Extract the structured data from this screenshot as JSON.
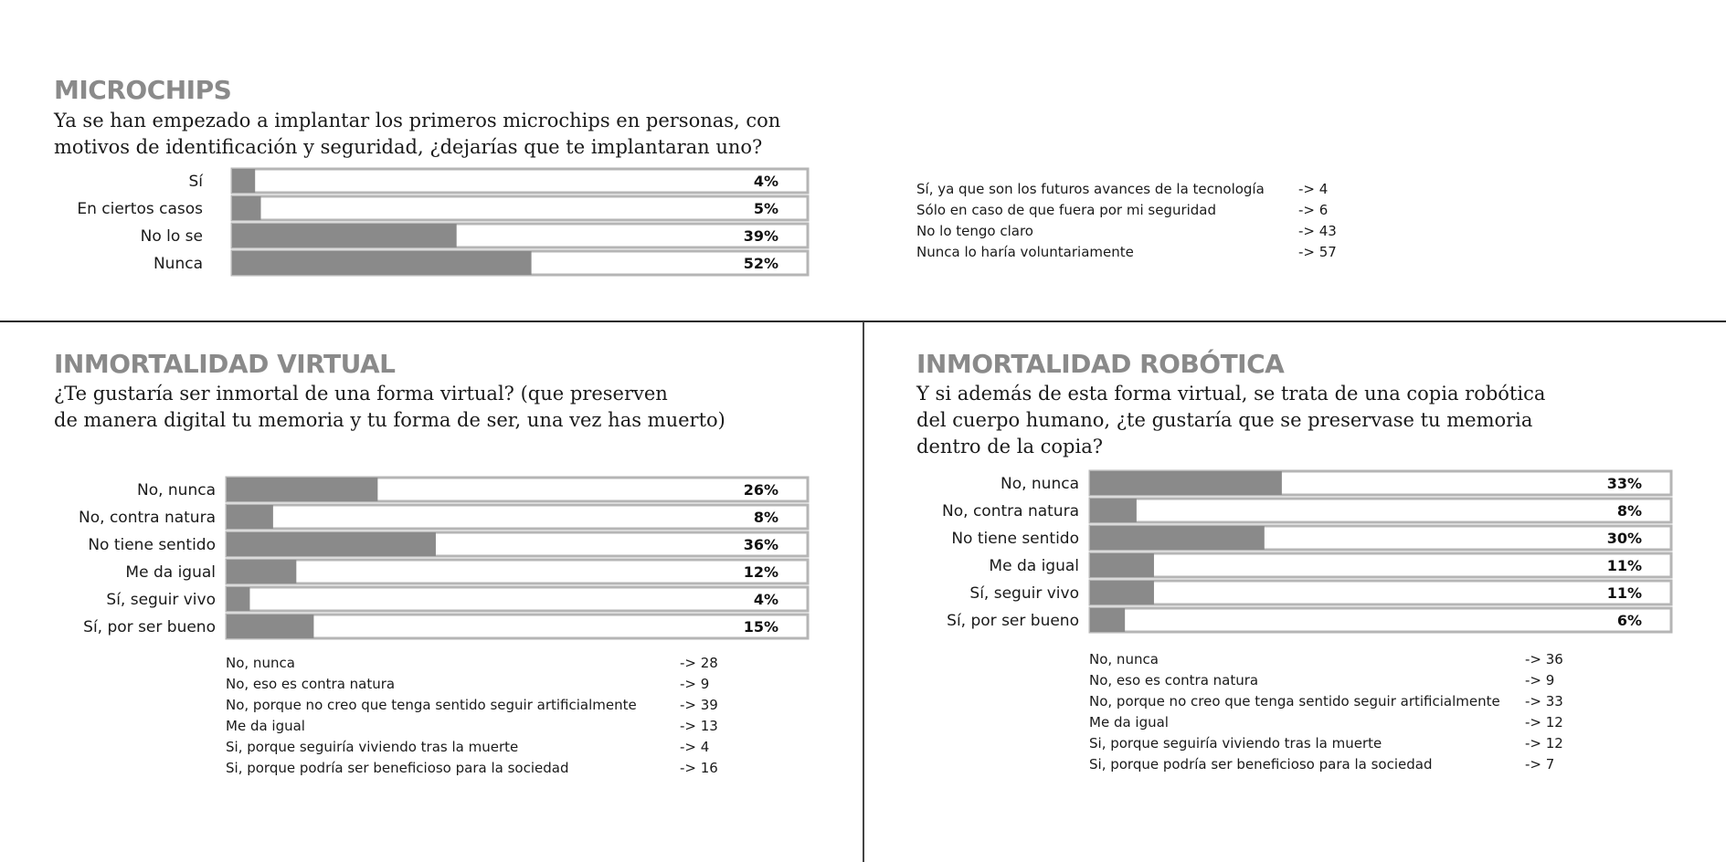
{
  "colors": {
    "bar": "#8a8a8a",
    "track": "#ffffff",
    "border": "#b5b5b5",
    "title": "#8a8a8a"
  },
  "sections": {
    "microchips": {
      "title": "MICROCHIPS",
      "question": "Ya se han empezado a implantar los primeros microchips en personas, con\nmotivos de identificación y seguridad, ¿dejarías que te implantaran uno?",
      "answers": [
        {
          "text": "Sí, ya que son los futuros avances de la tecnología",
          "count": "-> 4"
        },
        {
          "text": "Sólo en caso de que fuera por mi seguridad",
          "count": "-> 6"
        },
        {
          "text": "No lo tengo claro",
          "count": "-> 43"
        },
        {
          "text": "Nunca lo haría voluntariamente",
          "count": "-> 57"
        }
      ]
    },
    "virtual": {
      "title": "INMORTALIDAD VIRTUAL",
      "question": "¿Te gustaría ser inmortal de una forma virtual? (que preserven\nde manera digital tu memoria y tu forma de ser, una vez has muerto)",
      "answers": [
        {
          "text": "No, nunca",
          "count": "-> 28"
        },
        {
          "text": "No, eso es contra natura",
          "count": "-> 9"
        },
        {
          "text": "No, porque no creo que tenga sentido seguir artificialmente",
          "count": "-> 39"
        },
        {
          "text": "Me da igual",
          "count": "-> 13"
        },
        {
          "text": "Si, porque seguiría viviendo tras la muerte",
          "count": "-> 4"
        },
        {
          "text": "Si, porque podría ser beneficioso para la sociedad",
          "count": "-> 16"
        }
      ]
    },
    "robotica": {
      "title": "INMORTALIDAD ROBÓTICA",
      "question": "Y si además de esta forma virtual, se trata de una copia robótica\ndel cuerpo humano, ¿te gustaría que se preservase tu memoria\ndentro de la copia?",
      "answers": [
        {
          "text": "No, nunca",
          "count": "-> 36"
        },
        {
          "text": "No, eso es contra natura",
          "count": "-> 9"
        },
        {
          "text": "No, porque no creo que tenga sentido seguir artificialmente",
          "count": "-> 33"
        },
        {
          "text": "Me da igual",
          "count": "-> 12"
        },
        {
          "text": "Si, porque seguiría viviendo tras la muerte",
          "count": "-> 12"
        },
        {
          "text": "Si, porque podría ser beneficioso para la sociedad",
          "count": "-> 7"
        }
      ]
    }
  },
  "chart_data": [
    {
      "type": "bar",
      "orientation": "horizontal",
      "categories": [
        "Sí",
        "En ciertos casos",
        "No lo se",
        "Nunca"
      ],
      "values": [
        4,
        5,
        39,
        52
      ],
      "value_labels": [
        "4%",
        "5%",
        "39%",
        "52%"
      ],
      "xlim": [
        0,
        100
      ]
    },
    {
      "type": "bar",
      "orientation": "horizontal",
      "categories": [
        "No, nunca",
        "No, contra natura",
        "No tiene sentido",
        "Me da igual",
        "Sí, seguir vivo",
        "Sí, por ser bueno"
      ],
      "values": [
        26,
        8,
        36,
        12,
        4,
        15
      ],
      "value_labels": [
        "26%",
        "8%",
        "36%",
        "12%",
        "4%",
        "15%"
      ],
      "xlim": [
        0,
        100
      ]
    },
    {
      "type": "bar",
      "orientation": "horizontal",
      "categories": [
        "No, nunca",
        "No, contra natura",
        "No tiene sentido",
        "Me da igual",
        "Sí, seguir vivo",
        "Sí, por ser bueno"
      ],
      "values": [
        33,
        8,
        30,
        11,
        11,
        6
      ],
      "value_labels": [
        "33%",
        "8%",
        "30%",
        "11%",
        "11%",
        "6%"
      ],
      "xlim": [
        0,
        100
      ]
    }
  ]
}
